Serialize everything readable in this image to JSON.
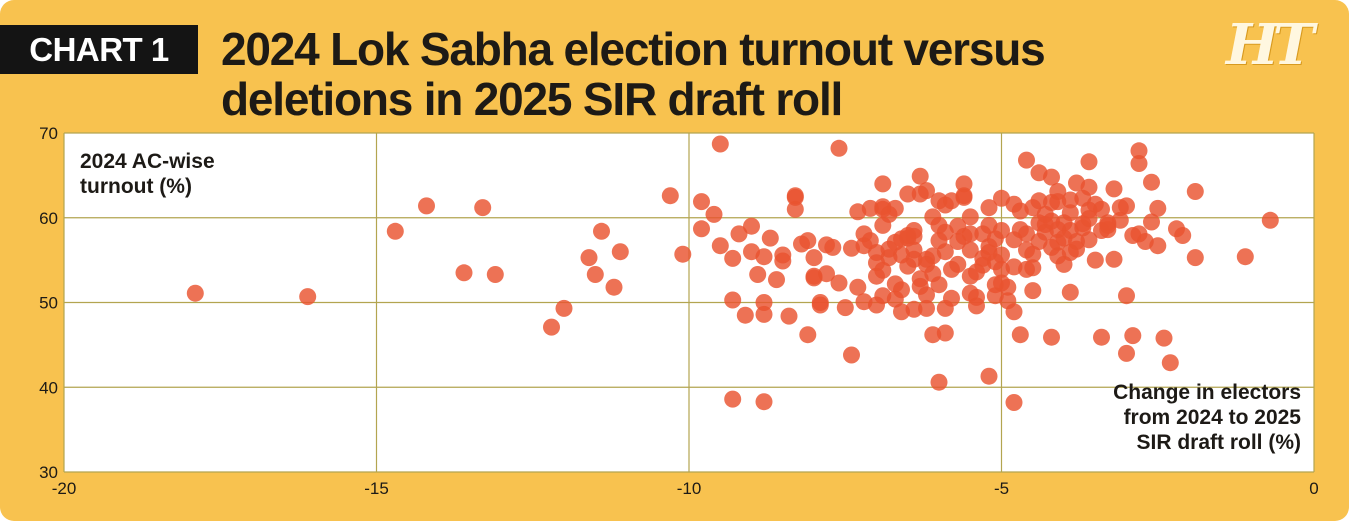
{
  "label": "CHART 1",
  "title_line1": "2024 Lok Sabha election turnout versus",
  "title_line2": "deletions in 2025 SIR draft roll",
  "logo": "HT",
  "colors": {
    "background": "#f8c24f",
    "point": "#e9532f",
    "grid": "#b3a550",
    "label_box": "#141414"
  },
  "chart_data": {
    "type": "scatter",
    "title": "2024 Lok Sabha election turnout versus deletions in 2025 SIR draft roll",
    "ylabel": "2024 AC-wise\nturnout (%)",
    "xlabel": "Change in electors\nfrom 2024 to 2025\nSIR draft roll (%)",
    "xlim": [
      -20,
      0
    ],
    "ylim": [
      30,
      70
    ],
    "x_ticks": [
      "-20",
      "-15",
      "-10",
      "-5",
      "0"
    ],
    "y_ticks": [
      "30",
      "40",
      "50",
      "60",
      "70"
    ],
    "grid": true,
    "points": [
      [
        -17.9,
        51.1
      ],
      [
        -16.1,
        50.7
      ],
      [
        -14.7,
        58.4
      ],
      [
        -14.2,
        61.4
      ],
      [
        -13.6,
        53.5
      ],
      [
        -13.3,
        61.2
      ],
      [
        -13.1,
        53.3
      ],
      [
        -12.2,
        47.1
      ],
      [
        -12,
        49.3
      ],
      [
        -11.6,
        55.3
      ],
      [
        -11.5,
        53.3
      ],
      [
        -11.4,
        58.4
      ],
      [
        -11.2,
        51.8
      ],
      [
        -11.1,
        56
      ],
      [
        -10.3,
        62.6
      ],
      [
        -10.1,
        55.7
      ],
      [
        -9.8,
        58.7
      ],
      [
        -9.8,
        61.9
      ],
      [
        -9.6,
        60.4
      ],
      [
        -9.5,
        68.7
      ],
      [
        -9.5,
        56.7
      ],
      [
        -9.3,
        55.2
      ],
      [
        -9.3,
        50.3
      ],
      [
        -9.2,
        58.1
      ],
      [
        -9.1,
        48.5
      ],
      [
        -9,
        59
      ],
      [
        -9,
        56
      ],
      [
        -8.9,
        53.3
      ],
      [
        -8.8,
        48.6
      ],
      [
        -8.8,
        50
      ],
      [
        -8.8,
        55.4
      ],
      [
        -8.7,
        57.6
      ],
      [
        -8.6,
        52.7
      ],
      [
        -8.5,
        55.6
      ],
      [
        -8.4,
        48.4
      ],
      [
        -8.3,
        61
      ],
      [
        -8.3,
        62.4
      ],
      [
        -8.2,
        56.9
      ],
      [
        -8.1,
        57.3
      ],
      [
        -8.1,
        46.2
      ],
      [
        -8,
        52.9
      ],
      [
        -8,
        55.3
      ],
      [
        -7.9,
        50
      ],
      [
        -7.8,
        53.4
      ],
      [
        -7.7,
        56.5
      ],
      [
        -7.6,
        52.3
      ],
      [
        -7.5,
        49.4
      ],
      [
        -7.4,
        56.4
      ],
      [
        -7.3,
        51.8
      ],
      [
        -7.2,
        58.1
      ],
      [
        -7.1,
        57.3
      ],
      [
        -7,
        49.7
      ],
      [
        -7,
        53.1
      ],
      [
        -6.9,
        61
      ],
      [
        -6.9,
        61.3
      ],
      [
        -6.8,
        60.4
      ],
      [
        -6.8,
        55.3
      ],
      [
        -6.7,
        50.4
      ],
      [
        -6.6,
        51.5
      ],
      [
        -6.5,
        57.6
      ],
      [
        -6.5,
        54.3
      ],
      [
        -6.4,
        58.5
      ],
      [
        -6.4,
        56.2
      ],
      [
        -6.3,
        52.8
      ],
      [
        -6.3,
        64.9
      ],
      [
        -6.2,
        63.2
      ],
      [
        -6.2,
        54.5
      ],
      [
        -6.2,
        49.3
      ],
      [
        -6.1,
        60.1
      ],
      [
        -6,
        57.3
      ],
      [
        -6,
        59.1
      ],
      [
        -6,
        52.1
      ],
      [
        -5.9,
        61.5
      ],
      [
        -5.9,
        56
      ],
      [
        -5.8,
        50.5
      ],
      [
        -5.7,
        57.2
      ],
      [
        -5.6,
        62.6
      ],
      [
        -5.6,
        57.8
      ],
      [
        -5.5,
        53.1
      ],
      [
        -5.5,
        60.1
      ],
      [
        -5.5,
        56.2
      ],
      [
        -5.4,
        49.6
      ],
      [
        -5.3,
        58.1
      ],
      [
        -5.2,
        61.2
      ],
      [
        -5.2,
        55.9
      ],
      [
        -5.1,
        54.8
      ],
      [
        -5.1,
        52.1
      ],
      [
        -5,
        58.5
      ],
      [
        -5,
        55.6
      ],
      [
        -4.9,
        50.2
      ],
      [
        -4.8,
        61.6
      ],
      [
        -4.8,
        54.2
      ],
      [
        -4.7,
        46.2
      ],
      [
        -4.7,
        58.6
      ],
      [
        -4.6,
        56.2
      ],
      [
        -4.5,
        55.7
      ],
      [
        -4.5,
        51.4
      ],
      [
        -4.4,
        62
      ],
      [
        -4.4,
        59.4
      ],
      [
        -4.3,
        58.3
      ],
      [
        -4.2,
        61.8
      ],
      [
        -4.2,
        45.9
      ],
      [
        -4.1,
        57.1
      ],
      [
        -4,
        59.4
      ],
      [
        -4,
        54.5
      ],
      [
        -3.9,
        58.5
      ],
      [
        -3.9,
        51.2
      ],
      [
        -3.8,
        56.3
      ],
      [
        -3.7,
        62.3
      ],
      [
        -3.7,
        59.3
      ],
      [
        -3.6,
        66.6
      ],
      [
        -3.6,
        57.4
      ],
      [
        -3.5,
        55
      ],
      [
        -3.4,
        61
      ],
      [
        -3.4,
        58.5
      ],
      [
        -3.3,
        59.4
      ],
      [
        -3.2,
        63.4
      ],
      [
        -3.1,
        61.2
      ],
      [
        -3.1,
        59.7
      ],
      [
        -3,
        44
      ],
      [
        -2.9,
        57.9
      ],
      [
        -2.8,
        66.4
      ],
      [
        -2.7,
        57.2
      ],
      [
        -2.6,
        59.5
      ],
      [
        -2.5,
        61.1
      ],
      [
        -2.5,
        56.7
      ],
      [
        -2.4,
        45.8
      ],
      [
        -2.3,
        42.9
      ],
      [
        -2.2,
        58.7
      ],
      [
        -2.1,
        57.9
      ],
      [
        -1.9,
        63.1
      ],
      [
        -1.9,
        55.3
      ],
      [
        -1.1,
        55.4
      ],
      [
        -0.7,
        59.7
      ],
      [
        -9.3,
        38.6
      ],
      [
        -8.8,
        38.3
      ],
      [
        -8.3,
        62.6
      ],
      [
        -7.4,
        43.8
      ],
      [
        -7.6,
        68.2
      ],
      [
        -6.9,
        59.1
      ],
      [
        -6.7,
        61.1
      ],
      [
        -6.6,
        57.5
      ],
      [
        -6.1,
        46.2
      ],
      [
        -6,
        40.6
      ],
      [
        -5.9,
        46.4
      ],
      [
        -5.2,
        41.3
      ],
      [
        -4.8,
        38.2
      ],
      [
        -4.8,
        48.9
      ],
      [
        -5.0,
        62.3
      ],
      [
        -4.6,
        66.8
      ],
      [
        -4.2,
        64.8
      ],
      [
        -4.1,
        61.9
      ],
      [
        -3.9,
        60.6
      ],
      [
        -3.8,
        64.1
      ],
      [
        -3.6,
        63.6
      ],
      [
        -3.4,
        45.9
      ],
      [
        -3.2,
        55.1
      ],
      [
        -3,
        50.8
      ],
      [
        -2.9,
        46.1
      ],
      [
        -2.6,
        64.2
      ],
      [
        -2.8,
        67.9
      ],
      [
        -6.4,
        55.1
      ],
      [
        -6.3,
        51.9
      ],
      [
        -6.5,
        57.9
      ],
      [
        -6.8,
        56.3
      ],
      [
        -5.6,
        64
      ],
      [
        -5.7,
        59
      ],
      [
        -5.8,
        53.9
      ],
      [
        -5.2,
        56.6
      ],
      [
        -5.4,
        50.6
      ],
      [
        -5.3,
        55.2
      ],
      [
        -5.0,
        53.9
      ],
      [
        -5.1,
        57.5
      ],
      [
        -4.9,
        51.8
      ],
      [
        -4.4,
        65.3
      ],
      [
        -4.3,
        59.2
      ],
      [
        -4.2,
        56.5
      ],
      [
        -4.0,
        57.6
      ],
      [
        -3.9,
        62.1
      ],
      [
        -3.7,
        58.8
      ],
      [
        -3.6,
        60.9
      ],
      [
        -3.5,
        61.6
      ],
      [
        -3.3,
        59.1
      ],
      [
        -7.2,
        50.1
      ],
      [
        -7.0,
        55.9
      ],
      [
        -6.9,
        53.8
      ],
      [
        -6.7,
        57.1
      ],
      [
        -6.6,
        55.6
      ],
      [
        -6.4,
        49.2
      ],
      [
        -6.2,
        50.9
      ],
      [
        -6.1,
        55.5
      ],
      [
        -5.9,
        49.3
      ],
      [
        -7.8,
        56.8
      ],
      [
        -7.3,
        60.7
      ],
      [
        -6.9,
        64
      ],
      [
        -5.5,
        58.1
      ],
      [
        -5.2,
        59.1
      ],
      [
        -4.7,
        60.8
      ],
      [
        -4.4,
        57.2
      ],
      [
        -4.1,
        58.6
      ],
      [
        -3.8,
        57.2
      ],
      [
        -3.6,
        59.9
      ],
      [
        -3.3,
        58.6
      ],
      [
        -3.0,
        61.4
      ],
      [
        -2.8,
        58.1
      ],
      [
        -6.3,
        62.8
      ],
      [
        -6.0,
        62
      ],
      [
        -5.8,
        62
      ],
      [
        -5.5,
        51.1
      ],
      [
        -5.1,
        50.8
      ],
      [
        -4.5,
        61.2
      ],
      [
        -4.2,
        59.6
      ],
      [
        -6.7,
        52.2
      ],
      [
        -7.1,
        61.1
      ],
      [
        -7.9,
        49.7
      ],
      [
        -8.0,
        53.1
      ],
      [
        -8.5,
        54.9
      ],
      [
        -6.6,
        48.9
      ],
      [
        -7.2,
        56.7
      ],
      [
        -6.5,
        62.8
      ],
      [
        -5.3,
        54.4
      ],
      [
        -4.1,
        63.1
      ],
      [
        -3.9,
        55.9
      ],
      [
        -4.3,
        60.4
      ],
      [
        -4.6,
        58.1
      ],
      [
        -5.6,
        62.4
      ],
      [
        -6.9,
        50.8
      ],
      [
        -7.0,
        54.7
      ],
      [
        -6.2,
        55.1
      ],
      [
        -5.7,
        54.5
      ],
      [
        -5.4,
        53.6
      ],
      [
        -5.0,
        52.3
      ],
      [
        -4.6,
        53.9
      ],
      [
        -6.1,
        53.4
      ],
      [
        -6.4,
        57.8
      ],
      [
        -5.9,
        58.3
      ],
      [
        -4.8,
        57.4
      ],
      [
        -4.5,
        54.1
      ],
      [
        -4.1,
        55.5
      ]
    ]
  }
}
